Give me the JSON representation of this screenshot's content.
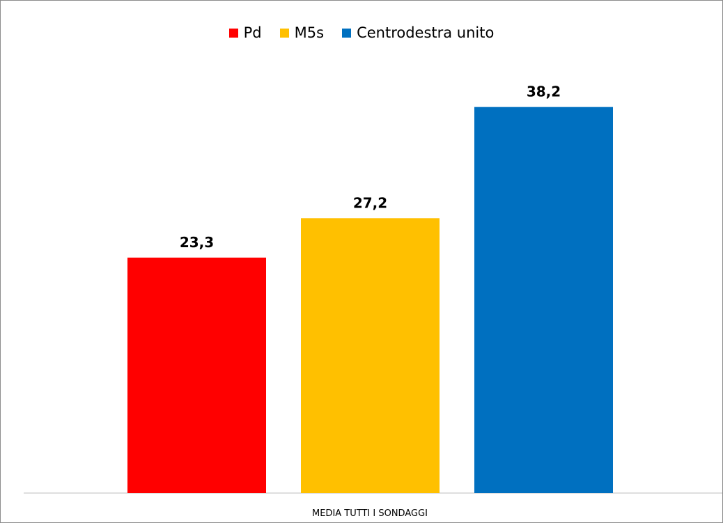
{
  "chart_data": {
    "type": "bar",
    "categories": [
      "MEDIA TUTTI I SONDAGGI"
    ],
    "series": [
      {
        "name": "Pd",
        "values": [
          23.3
        ],
        "value_label": "23,3",
        "color": "#ff0000"
      },
      {
        "name": "M5s",
        "values": [
          27.2
        ],
        "value_label": "27,2",
        "color": "#ffc000"
      },
      {
        "name": "Centrodestra unito",
        "values": [
          38.2
        ],
        "value_label": "38,2",
        "color": "#0070c0"
      }
    ],
    "ylim": [
      0,
      45
    ],
    "grid": false,
    "legend_position": "top"
  }
}
